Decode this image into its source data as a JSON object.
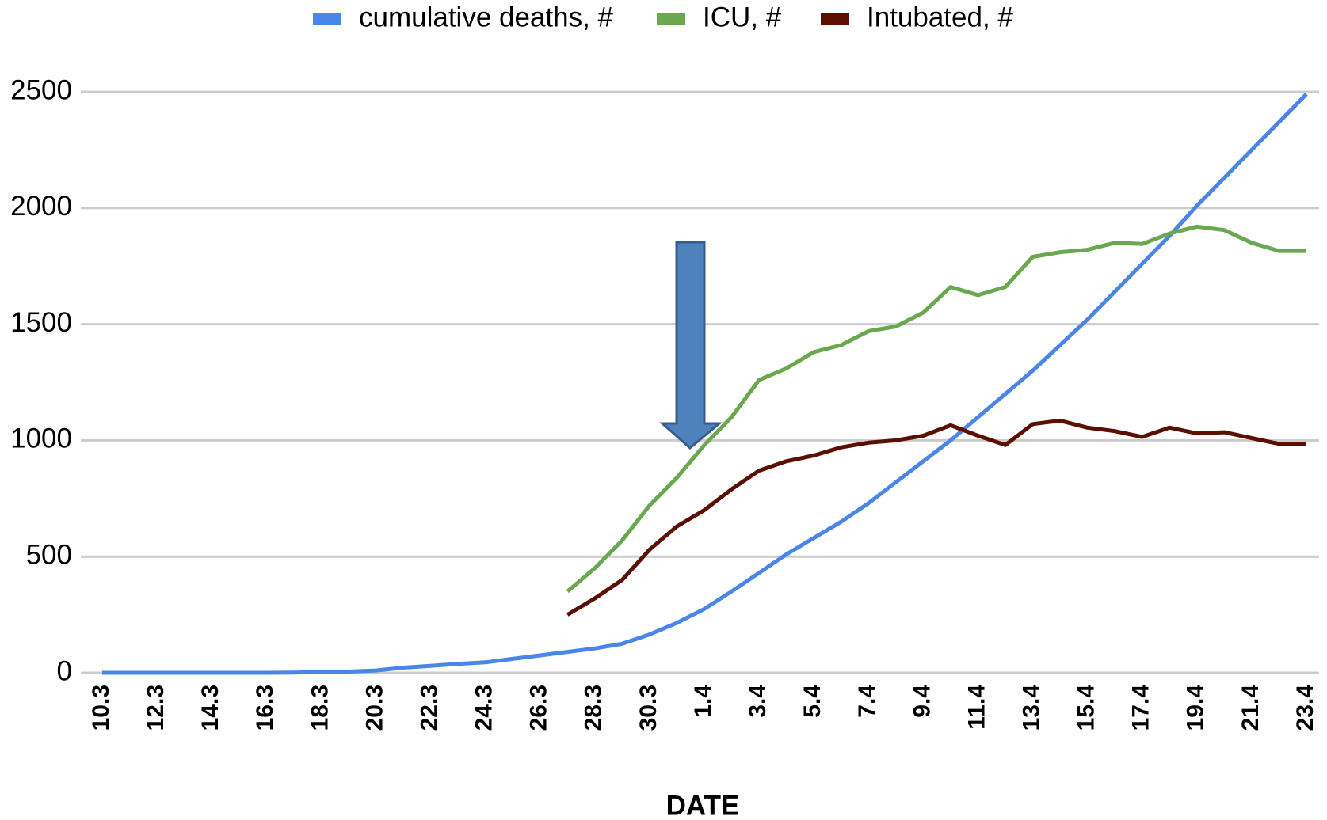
{
  "chart_data": {
    "type": "line",
    "x_label": "DATE",
    "categories": [
      "10.3",
      null,
      "12.3",
      null,
      "14.3",
      null,
      "16.3",
      null,
      "18.3",
      null,
      "20.3",
      null,
      "22.3",
      null,
      "24.3",
      null,
      "26.3",
      null,
      "28.3",
      null,
      "30.3",
      null,
      "1.4",
      null,
      "3.4",
      null,
      "5.4",
      null,
      "7.4",
      null,
      "9.4",
      null,
      "11.4",
      null,
      "13.4",
      null,
      "15.4",
      null,
      "17.4",
      null,
      "19.4",
      null,
      "21.4",
      null,
      "23.4"
    ],
    "series": [
      {
        "name": "cumulative deaths, #",
        "color": "#4a86e8",
        "values": [
          0,
          0,
          0,
          0,
          0,
          0,
          0,
          1,
          3,
          5,
          10,
          22,
          30,
          38,
          45,
          60,
          75,
          90,
          105,
          125,
          165,
          215,
          275,
          350,
          430,
          510,
          580,
          650,
          730,
          820,
          910,
          1000,
          1100,
          1200,
          1300,
          1410,
          1520,
          1640,
          1760,
          1880,
          2010,
          2130,
          2250,
          2370,
          2490
        ]
      },
      {
        "name": "ICU, #",
        "color": "#6aa84f",
        "values": [
          null,
          null,
          null,
          null,
          null,
          null,
          null,
          null,
          null,
          null,
          null,
          null,
          null,
          null,
          null,
          null,
          null,
          350,
          450,
          570,
          720,
          840,
          980,
          1100,
          1260,
          1310,
          1380,
          1410,
          1470,
          1490,
          1550,
          1660,
          1625,
          1660,
          1790,
          1810,
          1820,
          1850,
          1845,
          1890,
          1920,
          1905,
          1850,
          1815,
          1815
        ]
      },
      {
        "name": "Intubated, #",
        "color": "#5b0f00",
        "values": [
          null,
          null,
          null,
          null,
          null,
          null,
          null,
          null,
          null,
          null,
          null,
          null,
          null,
          null,
          null,
          null,
          null,
          250,
          320,
          400,
          530,
          630,
          700,
          790,
          870,
          910,
          935,
          970,
          990,
          1000,
          1020,
          1065,
          1020,
          980,
          1070,
          1085,
          1055,
          1040,
          1015,
          1055,
          1030,
          1035,
          1010,
          985,
          985
        ]
      }
    ],
    "ylim": [
      0,
      2500
    ],
    "yticks": [
      0,
      500,
      1000,
      1500,
      2000,
      2500
    ],
    "grid": true,
    "legend": "top"
  }
}
